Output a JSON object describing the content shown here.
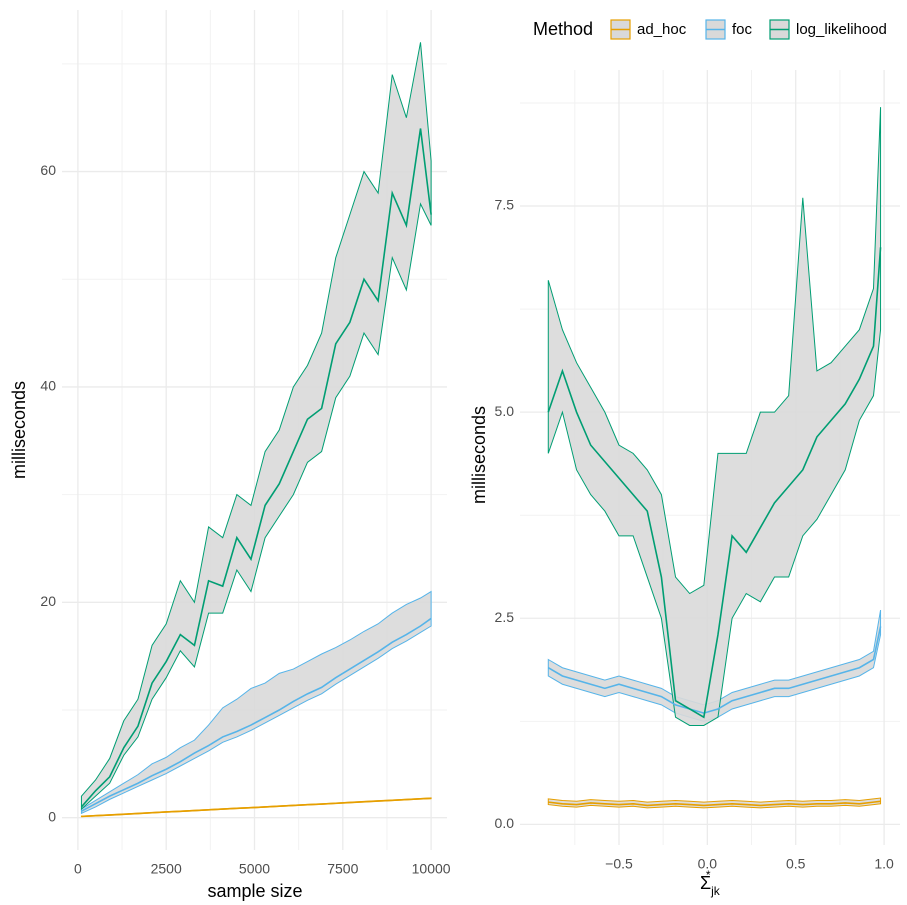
{
  "chart_data": [
    {
      "type": "line",
      "x_label": "sample size",
      "y_label": "milliseconds",
      "xlim": [
        -450,
        10450
      ],
      "ylim": [
        -3,
        75
      ],
      "xticks": [
        0,
        2500,
        5000,
        7500,
        10000
      ],
      "yticks": [
        0,
        20,
        40,
        60
      ],
      "minor_xticks": [
        1250,
        3750,
        6250,
        8750
      ],
      "minor_yticks": [
        10,
        30,
        50,
        70
      ],
      "grid": true,
      "ribbon_fill": "#d9d9d9",
      "x": [
        100,
        500,
        900,
        1300,
        1700,
        2100,
        2500,
        2900,
        3300,
        3700,
        4100,
        4500,
        4900,
        5300,
        5700,
        6100,
        6500,
        6900,
        7300,
        7700,
        8100,
        8500,
        8900,
        9300,
        9700,
        10000
      ],
      "series": [
        {
          "name": "ad_hoc",
          "color": "#E69F00",
          "values": [
            0.12,
            0.19,
            0.25,
            0.32,
            0.39,
            0.46,
            0.53,
            0.59,
            0.66,
            0.73,
            0.8,
            0.87,
            0.93,
            1.0,
            1.07,
            1.14,
            1.21,
            1.27,
            1.34,
            1.41,
            1.48,
            1.55,
            1.61,
            1.68,
            1.75,
            1.8
          ],
          "lower": [
            0.1,
            0.16,
            0.22,
            0.29,
            0.36,
            0.43,
            0.5,
            0.56,
            0.63,
            0.7,
            0.77,
            0.84,
            0.9,
            0.97,
            1.04,
            1.11,
            1.18,
            1.24,
            1.31,
            1.38,
            1.45,
            1.52,
            1.58,
            1.65,
            1.72,
            1.77
          ],
          "upper": [
            0.15,
            0.22,
            0.28,
            0.35,
            0.42,
            0.49,
            0.56,
            0.62,
            0.69,
            0.76,
            0.83,
            0.9,
            0.96,
            1.03,
            1.1,
            1.17,
            1.24,
            1.3,
            1.37,
            1.44,
            1.51,
            1.58,
            1.64,
            1.71,
            1.78,
            1.84
          ]
        },
        {
          "name": "foc",
          "color": "#56B4E9",
          "values": [
            0.6,
            1.3,
            2.0,
            2.6,
            3.2,
            3.9,
            4.5,
            5.2,
            6.0,
            6.7,
            7.5,
            8.0,
            8.6,
            9.3,
            10.0,
            10.8,
            11.5,
            12.1,
            13.0,
            13.8,
            14.6,
            15.4,
            16.3,
            17.0,
            17.8,
            18.5
          ],
          "lower": [
            0.4,
            1.0,
            1.7,
            2.3,
            2.9,
            3.5,
            4.1,
            4.8,
            5.5,
            6.2,
            7.0,
            7.5,
            8.1,
            8.8,
            9.5,
            10.2,
            10.9,
            11.5,
            12.4,
            13.2,
            14.0,
            14.8,
            15.7,
            16.4,
            17.2,
            17.8
          ],
          "upper": [
            0.8,
            1.6,
            2.4,
            3.2,
            4.0,
            5.0,
            5.6,
            6.5,
            7.2,
            8.6,
            10.2,
            11.0,
            12.0,
            12.5,
            13.4,
            13.8,
            14.5,
            15.2,
            15.8,
            16.5,
            17.3,
            18.0,
            19.0,
            19.8,
            20.4,
            21.0
          ]
        },
        {
          "name": "log_likelihood",
          "color": "#009E73",
          "values": [
            1.0,
            2.5,
            3.8,
            6.5,
            8.5,
            12.5,
            14.5,
            17.0,
            16.0,
            22.0,
            21.5,
            26.0,
            24.0,
            29.0,
            31.0,
            34.0,
            37.0,
            38.0,
            44.0,
            46.0,
            50.0,
            48.0,
            58.0,
            55.0,
            64.0,
            56.0
          ],
          "lower": [
            0.8,
            2.0,
            3.2,
            5.8,
            7.5,
            11.0,
            13.0,
            15.5,
            14.0,
            19.0,
            19.0,
            23.0,
            21.0,
            26.0,
            28.0,
            30.0,
            33.0,
            34.0,
            39.0,
            41.0,
            45.0,
            43.0,
            52.0,
            49.0,
            57.0,
            55.0
          ],
          "upper": [
            2.0,
            3.5,
            5.5,
            9.0,
            11.0,
            16.0,
            18.0,
            22.0,
            20.0,
            27.0,
            26.0,
            30.0,
            29.0,
            34.0,
            36.0,
            40.0,
            42.0,
            45.0,
            52.0,
            56.0,
            60.0,
            58.0,
            69.0,
            65.0,
            72.0,
            61.0
          ]
        }
      ]
    },
    {
      "type": "line",
      "x_label": {
        "base": "Σ",
        "sup": "*",
        "sub": "jk"
      },
      "y_label": "milliseconds",
      "xlim": [
        -1.06,
        1.09
      ],
      "ylim": [
        -0.25,
        9.15
      ],
      "xticks": [
        {
          "value": -0.5,
          "label": "−0.5"
        },
        {
          "value": 0,
          "label": "0.0"
        },
        0.5,
        {
          "value": 1,
          "label": "1.0"
        }
      ],
      "yticks": [
        {
          "value": 0,
          "label": "0.0"
        },
        2.5,
        {
          "value": 5,
          "label": "5.0"
        },
        7.5
      ],
      "minor_xticks": [
        -0.75,
        -0.25,
        0.25,
        0.75
      ],
      "minor_yticks": [
        1.25,
        3.75,
        6.25,
        8.75
      ],
      "grid": true,
      "ribbon_fill": "#d9d9d9",
      "legend": {
        "title": "Method",
        "position": "top"
      },
      "x": [
        -0.9,
        -0.82,
        -0.74,
        -0.66,
        -0.58,
        -0.5,
        -0.42,
        -0.34,
        -0.26,
        -0.18,
        -0.1,
        -0.02,
        0.06,
        0.14,
        0.22,
        0.3,
        0.38,
        0.46,
        0.54,
        0.62,
        0.7,
        0.78,
        0.86,
        0.94,
        0.98
      ],
      "series": [
        {
          "name": "ad_hoc",
          "color": "#E69F00",
          "values": [
            0.27,
            0.25,
            0.24,
            0.26,
            0.25,
            0.24,
            0.25,
            0.23,
            0.24,
            0.25,
            0.24,
            0.23,
            0.24,
            0.25,
            0.24,
            0.23,
            0.24,
            0.25,
            0.24,
            0.25,
            0.25,
            0.26,
            0.25,
            0.27,
            0.28
          ],
          "lower": [
            0.24,
            0.22,
            0.21,
            0.23,
            0.22,
            0.21,
            0.22,
            0.2,
            0.21,
            0.22,
            0.21,
            0.2,
            0.21,
            0.22,
            0.21,
            0.2,
            0.21,
            0.22,
            0.21,
            0.22,
            0.22,
            0.23,
            0.22,
            0.24,
            0.25
          ],
          "upper": [
            0.31,
            0.29,
            0.28,
            0.3,
            0.29,
            0.28,
            0.29,
            0.27,
            0.28,
            0.29,
            0.28,
            0.27,
            0.28,
            0.29,
            0.28,
            0.27,
            0.28,
            0.29,
            0.28,
            0.29,
            0.29,
            0.3,
            0.29,
            0.31,
            0.32
          ]
        },
        {
          "name": "foc",
          "color": "#56B4E9",
          "values": [
            1.9,
            1.8,
            1.75,
            1.7,
            1.65,
            1.7,
            1.65,
            1.6,
            1.55,
            1.45,
            1.4,
            1.35,
            1.4,
            1.5,
            1.55,
            1.6,
            1.65,
            1.65,
            1.7,
            1.75,
            1.8,
            1.85,
            1.9,
            2.0,
            2.4
          ],
          "lower": [
            1.8,
            1.7,
            1.65,
            1.6,
            1.55,
            1.6,
            1.55,
            1.5,
            1.45,
            1.35,
            1.3,
            1.25,
            1.3,
            1.4,
            1.45,
            1.5,
            1.55,
            1.55,
            1.6,
            1.65,
            1.7,
            1.75,
            1.8,
            1.9,
            2.3
          ],
          "upper": [
            2.0,
            1.9,
            1.85,
            1.8,
            1.75,
            1.8,
            1.75,
            1.7,
            1.65,
            1.55,
            1.5,
            1.45,
            1.5,
            1.6,
            1.65,
            1.7,
            1.75,
            1.75,
            1.8,
            1.85,
            1.9,
            1.95,
            2.0,
            2.1,
            2.6
          ]
        },
        {
          "name": "log_likelihood",
          "color": "#009E73",
          "values": [
            5.0,
            5.5,
            5.0,
            4.6,
            4.4,
            4.2,
            4.0,
            3.8,
            3.0,
            1.5,
            1.4,
            1.3,
            2.3,
            3.5,
            3.3,
            3.6,
            3.9,
            4.1,
            4.3,
            4.7,
            4.9,
            5.1,
            5.4,
            5.8,
            7.0
          ],
          "lower": [
            4.5,
            5.0,
            4.3,
            4.0,
            3.8,
            3.5,
            3.5,
            3.0,
            2.5,
            1.3,
            1.2,
            1.2,
            1.3,
            2.5,
            2.8,
            2.7,
            3.0,
            3.0,
            3.5,
            3.7,
            4.0,
            4.3,
            4.9,
            5.2,
            6.0
          ],
          "upper": [
            6.6,
            6.0,
            5.6,
            5.3,
            5.0,
            4.6,
            4.5,
            4.3,
            4.0,
            3.0,
            2.8,
            2.9,
            4.5,
            4.5,
            4.5,
            5.0,
            5.0,
            5.2,
            7.6,
            5.5,
            5.6,
            5.8,
            6.0,
            6.5,
            8.7
          ]
        }
      ]
    }
  ]
}
